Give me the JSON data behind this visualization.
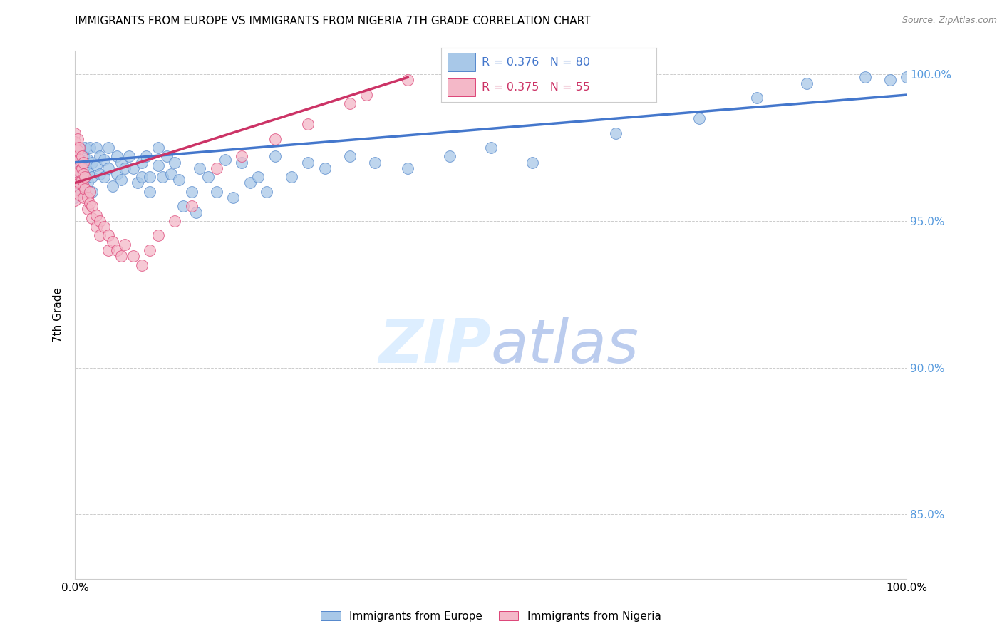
{
  "title": "IMMIGRANTS FROM EUROPE VS IMMIGRANTS FROM NIGERIA 7TH GRADE CORRELATION CHART",
  "source": "Source: ZipAtlas.com",
  "ylabel": "7th Grade",
  "x_min": 0.0,
  "x_max": 1.0,
  "y_min": 0.828,
  "y_max": 1.008,
  "y_ticks": [
    0.85,
    0.9,
    0.95,
    1.0
  ],
  "y_tick_labels": [
    "85.0%",
    "90.0%",
    "95.0%",
    "100.0%"
  ],
  "x_ticks": [
    0.0,
    1.0
  ],
  "x_tick_labels": [
    "0.0%",
    "100.0%"
  ],
  "legend_blue_label": "Immigrants from Europe",
  "legend_pink_label": "Immigrants from Nigeria",
  "blue_R": 0.376,
  "blue_N": 80,
  "pink_R": 0.375,
  "pink_N": 55,
  "blue_color": "#a8c8e8",
  "pink_color": "#f4b8c8",
  "blue_edge_color": "#5588cc",
  "pink_edge_color": "#dd4477",
  "blue_line_color": "#4477cc",
  "pink_line_color": "#cc3366",
  "blue_scatter_x": [
    0.0,
    0.0,
    0.0,
    0.0,
    0.0,
    0.005,
    0.005,
    0.008,
    0.008,
    0.008,
    0.01,
    0.01,
    0.01,
    0.012,
    0.012,
    0.015,
    0.015,
    0.015,
    0.018,
    0.02,
    0.02,
    0.02,
    0.025,
    0.025,
    0.03,
    0.03,
    0.035,
    0.035,
    0.04,
    0.04,
    0.045,
    0.05,
    0.05,
    0.055,
    0.055,
    0.06,
    0.065,
    0.07,
    0.075,
    0.08,
    0.08,
    0.085,
    0.09,
    0.09,
    0.1,
    0.1,
    0.105,
    0.11,
    0.115,
    0.12,
    0.125,
    0.13,
    0.14,
    0.145,
    0.15,
    0.16,
    0.17,
    0.18,
    0.19,
    0.2,
    0.21,
    0.22,
    0.23,
    0.24,
    0.26,
    0.28,
    0.3,
    0.33,
    0.36,
    0.4,
    0.45,
    0.5,
    0.55,
    0.65,
    0.75,
    0.82,
    0.88,
    0.95,
    0.98,
    1.0
  ],
  "blue_scatter_y": [
    0.972,
    0.968,
    0.965,
    0.961,
    0.958,
    0.975,
    0.97,
    0.968,
    0.964,
    0.96,
    0.972,
    0.968,
    0.964,
    0.975,
    0.969,
    0.971,
    0.967,
    0.963,
    0.975,
    0.97,
    0.965,
    0.96,
    0.975,
    0.969,
    0.972,
    0.966,
    0.971,
    0.965,
    0.975,
    0.968,
    0.962,
    0.972,
    0.966,
    0.97,
    0.964,
    0.968,
    0.972,
    0.968,
    0.963,
    0.97,
    0.965,
    0.972,
    0.965,
    0.96,
    0.975,
    0.969,
    0.965,
    0.972,
    0.966,
    0.97,
    0.964,
    0.955,
    0.96,
    0.953,
    0.968,
    0.965,
    0.96,
    0.971,
    0.958,
    0.97,
    0.963,
    0.965,
    0.96,
    0.972,
    0.965,
    0.97,
    0.968,
    0.972,
    0.97,
    0.968,
    0.972,
    0.975,
    0.97,
    0.98,
    0.985,
    0.992,
    0.997,
    0.999,
    0.998,
    0.999
  ],
  "pink_scatter_x": [
    0.0,
    0.0,
    0.0,
    0.0,
    0.0,
    0.0,
    0.0,
    0.0,
    0.0,
    0.003,
    0.003,
    0.005,
    0.005,
    0.005,
    0.005,
    0.005,
    0.008,
    0.008,
    0.008,
    0.01,
    0.01,
    0.01,
    0.01,
    0.012,
    0.012,
    0.015,
    0.015,
    0.018,
    0.018,
    0.02,
    0.02,
    0.025,
    0.025,
    0.03,
    0.03,
    0.035,
    0.04,
    0.04,
    0.045,
    0.05,
    0.055,
    0.06,
    0.07,
    0.08,
    0.09,
    0.1,
    0.12,
    0.14,
    0.17,
    0.2,
    0.24,
    0.28,
    0.33,
    0.35,
    0.4
  ],
  "pink_scatter_y": [
    0.98,
    0.977,
    0.975,
    0.972,
    0.969,
    0.966,
    0.963,
    0.96,
    0.957,
    0.978,
    0.974,
    0.975,
    0.971,
    0.967,
    0.963,
    0.959,
    0.972,
    0.968,
    0.964,
    0.97,
    0.966,
    0.962,
    0.958,
    0.965,
    0.961,
    0.958,
    0.954,
    0.96,
    0.956,
    0.955,
    0.951,
    0.952,
    0.948,
    0.95,
    0.945,
    0.948,
    0.945,
    0.94,
    0.943,
    0.94,
    0.938,
    0.942,
    0.938,
    0.935,
    0.94,
    0.945,
    0.95,
    0.955,
    0.968,
    0.972,
    0.978,
    0.983,
    0.99,
    0.993,
    0.998
  ],
  "blue_line_start_y": 0.97,
  "blue_line_end_y": 0.993,
  "pink_line_start_x": 0.0,
  "pink_line_start_y": 0.963,
  "pink_line_end_x": 0.4,
  "pink_line_end_y": 0.999
}
